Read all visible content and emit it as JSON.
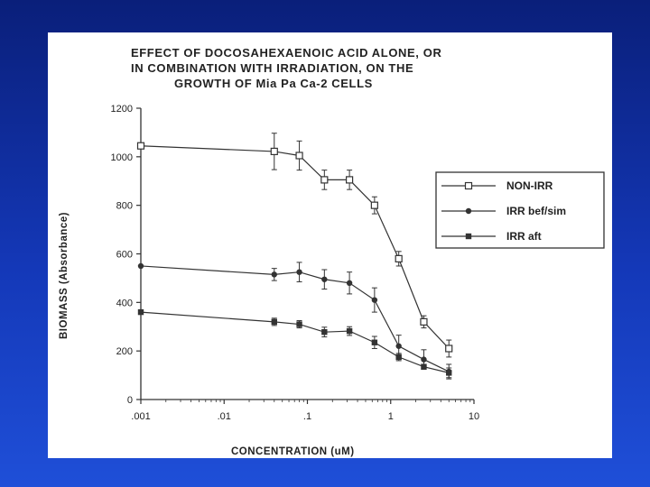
{
  "chart_data": {
    "type": "line",
    "title": [
      "EFFECT OF DOCOSAHEXAENOIC ACID ALONE, OR",
      "IN COMBINATION WITH  IRRADIATION, ON THE",
      "GROWTH OF Mia Pa Ca-2 CELLS"
    ],
    "xlabel": "CONCENTRATION   (uM)",
    "ylabel": "BIOMASS    (Absorbance)",
    "x_scale": "log",
    "xlim": [
      0.001,
      10
    ],
    "ylim": [
      0,
      1200
    ],
    "x_ticks": [
      0.001,
      0.01,
      0.1,
      1,
      10
    ],
    "x_tick_labels": [
      ".001",
      ".01",
      ".1",
      "1",
      "10"
    ],
    "y_ticks": [
      0,
      200,
      400,
      600,
      800,
      1000,
      1200
    ],
    "y_tick_labels": [
      "0",
      "200",
      "400",
      "600",
      "800",
      "1000",
      "1200"
    ],
    "legend_position": "right",
    "series": [
      {
        "name": "NON-IRR",
        "marker": "open-square",
        "x": [
          0.001,
          0.04,
          0.08,
          0.16,
          0.32,
          0.64,
          1.25,
          2.5,
          5
        ],
        "y": [
          1045,
          1022,
          1005,
          905,
          905,
          800,
          580,
          320,
          210
        ],
        "err": [
          0,
          75,
          60,
          40,
          40,
          35,
          30,
          25,
          35
        ]
      },
      {
        "name": "IRR bef/sim",
        "marker": "filled-circle",
        "x": [
          0.001,
          0.04,
          0.08,
          0.16,
          0.32,
          0.64,
          1.25,
          2.5,
          5
        ],
        "y": [
          550,
          515,
          525,
          495,
          480,
          410,
          220,
          165,
          115
        ],
        "err": [
          0,
          25,
          40,
          40,
          45,
          50,
          45,
          40,
          30
        ]
      },
      {
        "name": "IRR aft",
        "marker": "filled-square",
        "x": [
          0.001,
          0.04,
          0.08,
          0.16,
          0.32,
          0.64,
          1.25,
          2.5,
          5
        ],
        "y": [
          360,
          320,
          310,
          278,
          282,
          235,
          175,
          135,
          110
        ],
        "err": [
          0,
          15,
          15,
          20,
          18,
          25,
          15,
          10,
          20
        ]
      }
    ]
  }
}
